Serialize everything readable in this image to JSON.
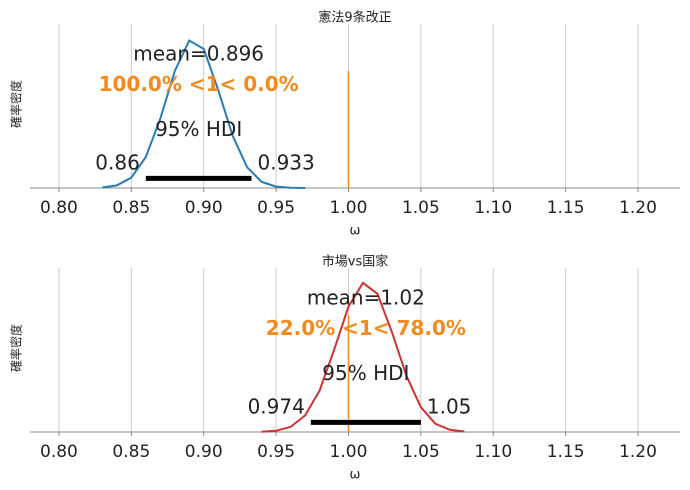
{
  "chart_data": [
    {
      "type": "density",
      "title": "憲法9条改正",
      "xlabel": "ω",
      "ylabel": "確率密度",
      "color": "#2b7bb0",
      "x": [
        0.83,
        0.84,
        0.85,
        0.86,
        0.87,
        0.88,
        0.89,
        0.9,
        0.91,
        0.92,
        0.93,
        0.94,
        0.95,
        0.96,
        0.97
      ],
      "y": [
        0.07,
        0.37,
        1.49,
        4.46,
        9.97,
        16.8,
        21.2,
        20.0,
        14.1,
        7.5,
        2.97,
        0.88,
        0.2,
        0.03,
        0.005
      ],
      "xlim": [
        0.78,
        1.229
      ],
      "ylim": [
        0,
        23
      ],
      "xticks": [
        {
          "value": 0.8,
          "label": "0.80"
        },
        {
          "value": 0.85,
          "label": "0.85"
        },
        {
          "value": 0.9,
          "label": "0.90"
        },
        {
          "value": 0.95,
          "label": "0.95"
        },
        {
          "value": 1.0,
          "label": "1.00"
        },
        {
          "value": 1.05,
          "label": "1.05"
        },
        {
          "value": 1.1,
          "label": "1.10"
        },
        {
          "value": 1.15,
          "label": "1.15"
        },
        {
          "value": 1.2,
          "label": "1.20"
        }
      ],
      "grid": true,
      "mean_label": "mean=0.896",
      "ref_val": 1,
      "ref_color": "#f28a1e",
      "ref_label": "100.0% <1< 0.0%",
      "hdi_label": "95% HDI",
      "hdi": [
        0.86,
        0.933
      ]
    },
    {
      "type": "density",
      "title": "市場vs国家",
      "xlabel": "ω",
      "ylabel": "確率密度",
      "color": "#cc3333",
      "x": [
        0.94,
        0.95,
        0.96,
        0.97,
        0.98,
        0.99,
        1.0,
        1.01,
        1.02,
        1.03,
        1.04,
        1.05,
        1.06,
        1.07,
        1.08
      ],
      "y": [
        0.03,
        0.16,
        0.68,
        2.2,
        5.5,
        10.9,
        16.7,
        19.85,
        18.4,
        13.3,
        7.5,
        3.3,
        1.1,
        0.3,
        0.06
      ],
      "xlim": [
        0.78,
        1.229
      ],
      "ylim": [
        0,
        21.3
      ],
      "xticks": [
        {
          "value": 0.8,
          "label": "0.80"
        },
        {
          "value": 0.85,
          "label": "0.85"
        },
        {
          "value": 0.9,
          "label": "0.90"
        },
        {
          "value": 0.95,
          "label": "0.95"
        },
        {
          "value": 1.0,
          "label": "1.00"
        },
        {
          "value": 1.05,
          "label": "1.05"
        },
        {
          "value": 1.1,
          "label": "1.10"
        },
        {
          "value": 1.15,
          "label": "1.15"
        },
        {
          "value": 1.2,
          "label": "1.20"
        }
      ],
      "grid": true,
      "mean_label": "mean=1.02",
      "ref_val": 1,
      "ref_color": "#f28a1e",
      "ref_label": "22.0% <1< 78.0%",
      "hdi_label": "95% HDI",
      "hdi": [
        0.974,
        1.05
      ]
    }
  ]
}
